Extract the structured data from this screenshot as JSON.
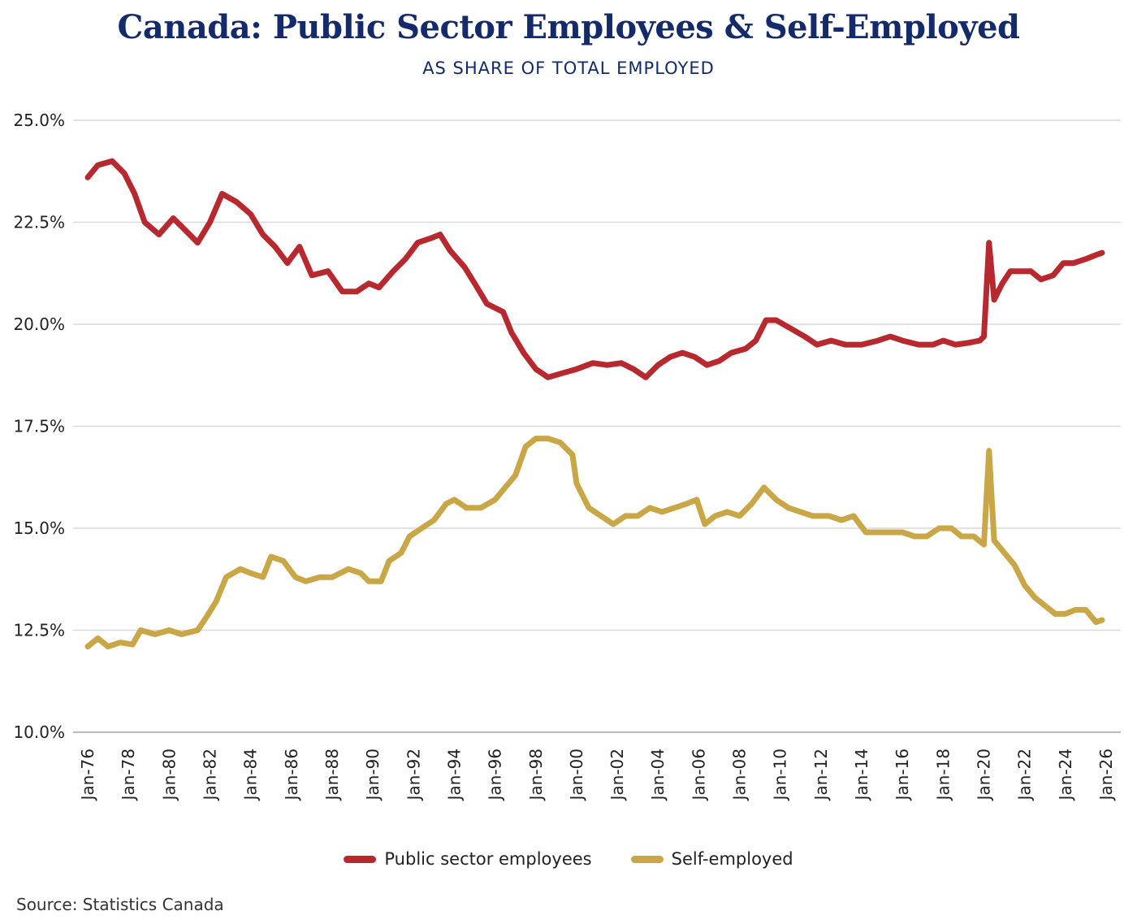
{
  "chart_data": {
    "type": "line",
    "title": "Canada: Public Sector Employees & Self-Employed",
    "subtitle": "AS SHARE OF TOTAL EMPLOYED",
    "xlabel": "",
    "ylabel": "",
    "ylim": [
      10.0,
      25.0
    ],
    "xlim": [
      1976,
      2026
    ],
    "yticks": [
      "10.0%",
      "12.5%",
      "15.0%",
      "17.5%",
      "20.0%",
      "22.5%",
      "25.0%"
    ],
    "xticks": [
      "Jan-76",
      "Jan-78",
      "Jan-80",
      "Jan-82",
      "Jan-84",
      "Jan-86",
      "Jan-88",
      "Jan-90",
      "Jan-92",
      "Jan-94",
      "Jan-96",
      "Jan-98",
      "Jan-00",
      "Jan-02",
      "Jan-04",
      "Jan-06",
      "Jan-08",
      "Jan-10",
      "Jan-12",
      "Jan-14",
      "Jan-16",
      "Jan-18",
      "Jan-20",
      "Jan-22",
      "Jan-24",
      "Jan-26"
    ],
    "grid": true,
    "legend_placement": "bottom-center",
    "series": [
      {
        "name": "Public sector employees",
        "color": "#b8292f",
        "x": [
          1976.0,
          1976.5,
          1977.2,
          1977.8,
          1978.3,
          1978.8,
          1979.5,
          1980.2,
          1980.8,
          1981.4,
          1982.0,
          1982.6,
          1983.3,
          1984.0,
          1984.6,
          1985.2,
          1985.8,
          1986.4,
          1987.0,
          1987.8,
          1988.5,
          1989.2,
          1989.8,
          1990.3,
          1991.0,
          1991.6,
          1992.2,
          1992.8,
          1993.3,
          1993.8,
          1994.5,
          1995.0,
          1995.6,
          1996.4,
          1996.8,
          1997.4,
          1998.0,
          1998.6,
          1999.3,
          2000.0,
          2000.8,
          2001.5,
          2002.2,
          2002.8,
          2003.4,
          2004.0,
          2004.6,
          2005.2,
          2005.8,
          2006.4,
          2007.0,
          2007.6,
          2008.3,
          2008.8,
          2009.3,
          2009.8,
          2010.5,
          2011.2,
          2011.8,
          2012.5,
          2013.2,
          2014.0,
          2014.8,
          2015.4,
          2016.0,
          2016.8,
          2017.5,
          2018.0,
          2018.6,
          2019.3,
          2019.8,
          2020.0,
          2020.25,
          2020.5,
          2020.9,
          2021.3,
          2021.8,
          2022.3,
          2022.8,
          2023.4,
          2023.9,
          2024.4,
          2025.0,
          2025.5,
          2025.8
        ],
        "values": [
          23.6,
          23.9,
          24.0,
          23.7,
          23.2,
          22.5,
          22.2,
          22.6,
          22.3,
          22.0,
          22.5,
          23.2,
          23.0,
          22.7,
          22.2,
          21.9,
          21.5,
          21.9,
          21.2,
          21.3,
          20.8,
          20.8,
          21.0,
          20.9,
          21.3,
          21.6,
          22.0,
          22.1,
          22.2,
          21.8,
          21.4,
          21.0,
          20.5,
          20.3,
          19.8,
          19.3,
          18.9,
          18.7,
          18.8,
          18.9,
          19.05,
          19.0,
          19.05,
          18.9,
          18.7,
          19.0,
          19.2,
          19.3,
          19.2,
          19.0,
          19.1,
          19.3,
          19.4,
          19.6,
          20.1,
          20.1,
          19.9,
          19.7,
          19.5,
          19.6,
          19.5,
          19.5,
          19.6,
          19.7,
          19.6,
          19.5,
          19.5,
          19.6,
          19.5,
          19.55,
          19.6,
          19.7,
          22.0,
          20.6,
          21.0,
          21.3,
          21.3,
          21.3,
          21.1,
          21.2,
          21.5,
          21.5,
          21.6,
          21.7,
          21.75
        ]
      },
      {
        "name": "Self-employed",
        "color": "#c9a646",
        "x": [
          1976.0,
          1976.5,
          1977.0,
          1977.6,
          1978.2,
          1978.6,
          1979.3,
          1980.0,
          1980.6,
          1981.4,
          1981.8,
          1982.3,
          1982.8,
          1983.5,
          1984.0,
          1984.6,
          1985.0,
          1985.6,
          1986.2,
          1986.7,
          1987.4,
          1988.0,
          1988.8,
          1989.4,
          1989.8,
          1990.4,
          1990.8,
          1991.4,
          1991.8,
          1992.4,
          1993.0,
          1993.6,
          1994.0,
          1994.6,
          1995.3,
          1996.0,
          1996.5,
          1997.0,
          1997.5,
          1998.0,
          1998.6,
          1999.2,
          1999.8,
          2000.0,
          2000.6,
          2001.2,
          2001.8,
          2002.4,
          2003.0,
          2003.6,
          2004.2,
          2004.8,
          2005.4,
          2005.9,
          2006.3,
          2006.8,
          2007.4,
          2008.0,
          2008.6,
          2009.2,
          2009.8,
          2010.4,
          2011.0,
          2011.6,
          2012.4,
          2013.0,
          2013.6,
          2014.2,
          2014.8,
          2015.4,
          2016.0,
          2016.6,
          2017.2,
          2017.8,
          2018.4,
          2018.9,
          2019.5,
          2020.0,
          2020.25,
          2020.5,
          2021.0,
          2021.5,
          2022.0,
          2022.5,
          2023.0,
          2023.5,
          2024.0,
          2024.5,
          2025.0,
          2025.5,
          2025.8
        ],
        "values": [
          12.1,
          12.3,
          12.1,
          12.2,
          12.15,
          12.5,
          12.4,
          12.5,
          12.4,
          12.5,
          12.8,
          13.2,
          13.8,
          14.0,
          13.9,
          13.8,
          14.3,
          14.2,
          13.8,
          13.7,
          13.8,
          13.8,
          14.0,
          13.9,
          13.7,
          13.7,
          14.2,
          14.4,
          14.8,
          15.0,
          15.2,
          15.6,
          15.7,
          15.5,
          15.5,
          15.7,
          16.0,
          16.3,
          17.0,
          17.2,
          17.2,
          17.1,
          16.8,
          16.1,
          15.5,
          15.3,
          15.1,
          15.3,
          15.3,
          15.5,
          15.4,
          15.5,
          15.6,
          15.7,
          15.1,
          15.3,
          15.4,
          15.3,
          15.6,
          16.0,
          15.7,
          15.5,
          15.4,
          15.3,
          15.3,
          15.2,
          15.3,
          14.9,
          14.9,
          14.9,
          14.9,
          14.8,
          14.8,
          15.0,
          15.0,
          14.8,
          14.8,
          14.6,
          16.9,
          14.7,
          14.4,
          14.1,
          13.6,
          13.3,
          13.1,
          12.9,
          12.9,
          13.0,
          13.0,
          12.7,
          12.75
        ]
      }
    ],
    "source": "Source: Statistics Canada"
  }
}
